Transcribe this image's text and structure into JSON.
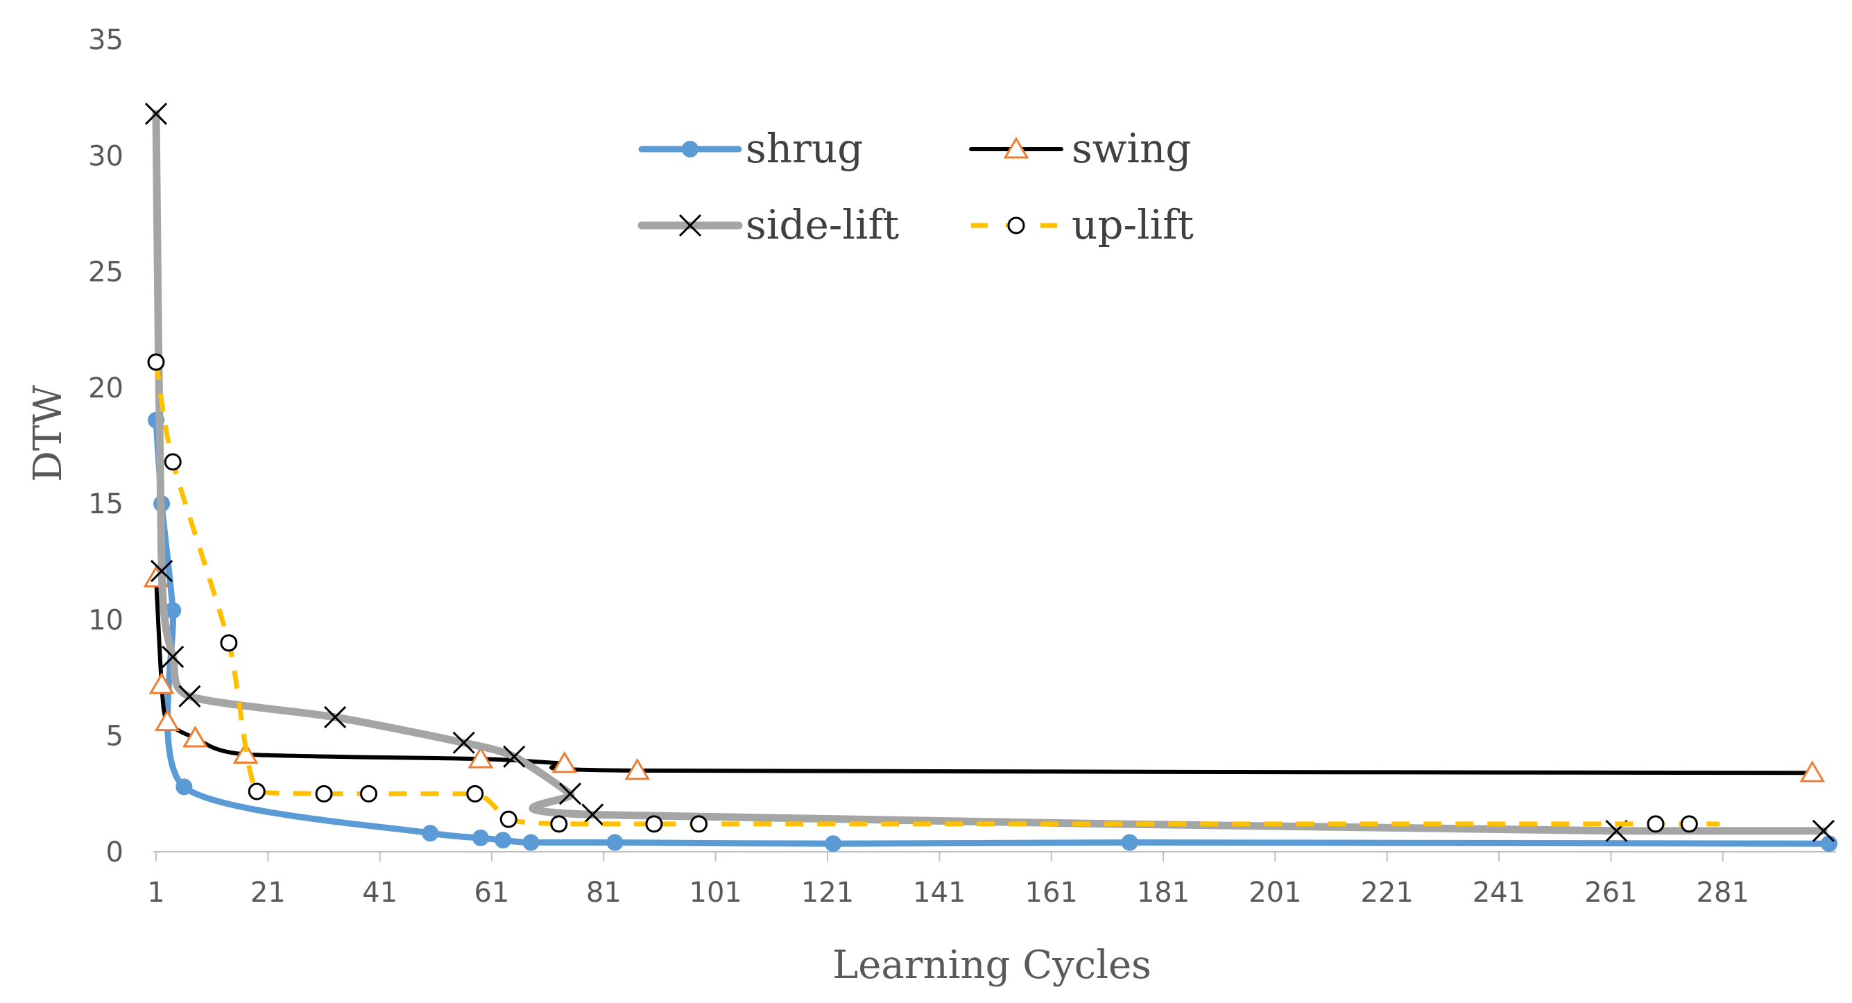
{
  "chart_data": {
    "type": "line",
    "title": "",
    "xlabel": "Learning Cycles",
    "ylabel": "DTW",
    "xlim": [
      1,
      300
    ],
    "ylim": [
      0,
      35
    ],
    "x_ticks": [
      1,
      21,
      41,
      61,
      81,
      101,
      121,
      141,
      161,
      181,
      201,
      221,
      241,
      261,
      281
    ],
    "y_ticks": [
      0,
      5,
      10,
      15,
      20,
      25,
      30,
      35
    ],
    "grid": false,
    "legend_position": "top-center",
    "series": [
      {
        "name": "shrug",
        "color": "#5B9BD5",
        "marker": "filled-circle",
        "line_style": "solid",
        "x": [
          1,
          2,
          4,
          6,
          50,
          59,
          63,
          68,
          83,
          122,
          175,
          300
        ],
        "y": [
          18.6,
          15.0,
          10.4,
          2.8,
          0.8,
          0.6,
          0.5,
          0.4,
          0.4,
          0.35,
          0.4,
          0.35
        ]
      },
      {
        "name": "swing",
        "color": "#000000",
        "marker_color": "#ED7D31",
        "marker": "open-triangle",
        "line_style": "solid",
        "x": [
          1,
          2,
          3,
          8,
          17,
          59,
          74,
          87,
          297
        ],
        "y": [
          11.8,
          7.2,
          5.6,
          4.9,
          4.2,
          4.0,
          3.8,
          3.5,
          3.4
        ]
      },
      {
        "name": "side-lift",
        "color": "#A5A5A5",
        "marker_color": "#000000",
        "marker": "x",
        "line_style": "solid",
        "x": [
          1,
          2,
          4,
          7,
          33,
          56,
          65,
          75,
          79,
          262,
          299
        ],
        "y": [
          31.8,
          12.1,
          8.4,
          6.7,
          5.8,
          4.7,
          4.1,
          2.5,
          1.6,
          0.9,
          0.9
        ]
      },
      {
        "name": "up-lift",
        "color": "#FFC000",
        "marker_color": "#000000",
        "marker": "open-circle",
        "line_style": "dashed",
        "x": [
          1,
          4,
          14,
          19,
          31,
          39,
          58,
          64,
          73,
          90,
          98,
          269,
          275
        ],
        "y": [
          21.1,
          16.8,
          9.0,
          2.6,
          2.5,
          2.5,
          2.5,
          1.4,
          1.2,
          1.2,
          1.2,
          1.2,
          1.2
        ]
      }
    ]
  }
}
